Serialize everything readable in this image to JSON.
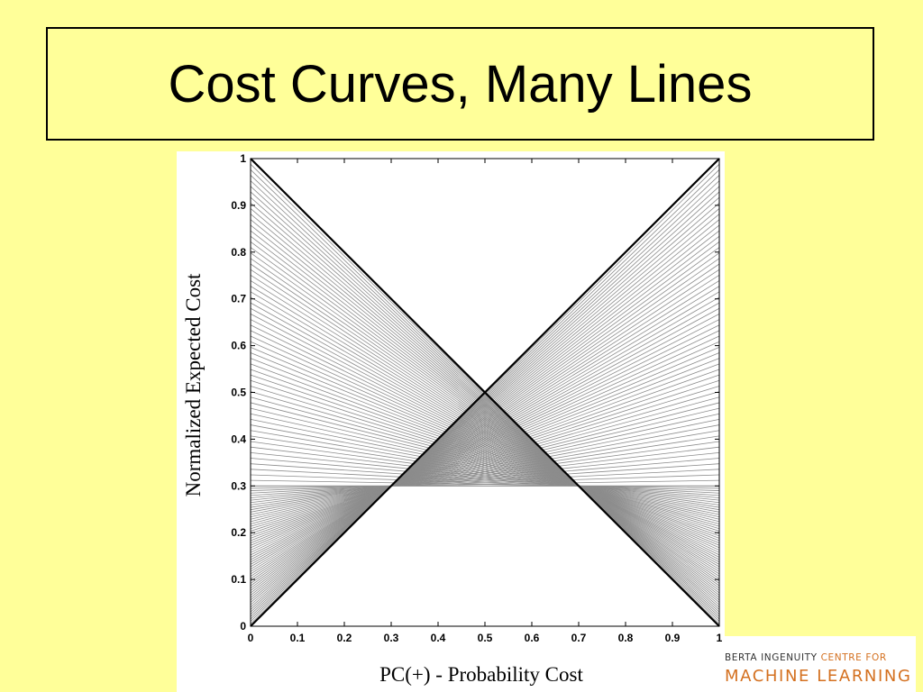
{
  "slide": {
    "title": "Cost Curves, Many Lines",
    "logo_line1_main": "BERTA INGENUITY ",
    "logo_line1_accent": "CENTRE FOR",
    "logo_line2": "MACHINE LEARNING"
  },
  "colors": {
    "background": "#ffff99",
    "plot_background": "#ffffff",
    "curve_gray": "#8c8c8c",
    "trivial_lines": "#000000",
    "logo_accent": "#d4701f"
  },
  "chart_data": {
    "type": "line",
    "title": "",
    "xlabel": "PC(+) - Probability Cost",
    "ylabel": "Normalized Expected Cost",
    "xlim": [
      0,
      1
    ],
    "ylim": [
      0,
      1
    ],
    "x_ticks": [
      "0",
      "0.1",
      "0.2",
      "0.3",
      "0.4",
      "0.5",
      "0.6",
      "0.7",
      "0.8",
      "0.9",
      "1"
    ],
    "y_ticks": [
      "0",
      "0.1",
      "0.2",
      "0.3",
      "0.4",
      "0.5",
      "0.6",
      "0.7",
      "0.8",
      "0.9",
      "1"
    ],
    "grid": false,
    "series": [
      {
        "role": "trivial classifier (always negative)",
        "x": [
          0,
          1
        ],
        "y": [
          0,
          1
        ]
      },
      {
        "role": "trivial classifier (always positive)",
        "x": [
          0,
          1
        ],
        "y": [
          1,
          0
        ]
      }
    ],
    "line_family": {
      "description": "each gray line runs from (0, FP) to (1, FN) for a ROC operating point; lines sweep from (0,1)-(1,0) through (0,0.3)-(1,0.3) to (0,0)-(1,1)",
      "segments_left": {
        "count": 60,
        "fp_from": 1.0,
        "fp_to": 0.3,
        "fn_from": 0.0,
        "fn_to": 0.3
      },
      "segments_right": {
        "count": 60,
        "fp_from": 0.3,
        "fp_to": 0.0,
        "fn_from": 0.3,
        "fn_to": 1.0
      }
    }
  }
}
